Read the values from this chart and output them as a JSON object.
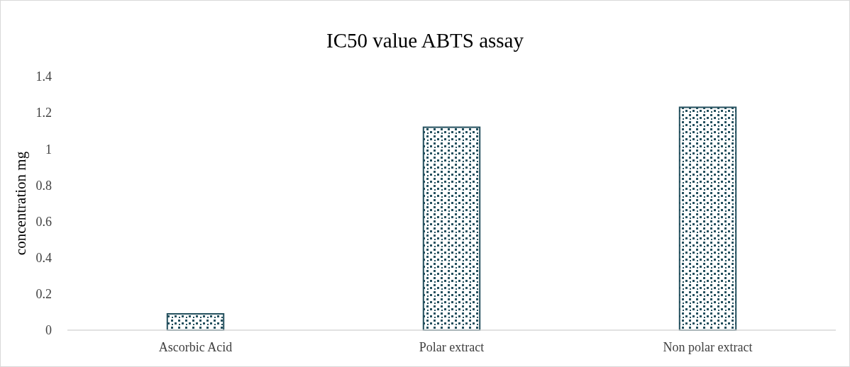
{
  "chart_data": {
    "type": "bar",
    "title": "IC50 value ABTS assay",
    "ylabel": "concentration mg",
    "categories": [
      "Ascorbic Acid",
      "Polar extract",
      "Non polar extract"
    ],
    "values": [
      0.09,
      1.12,
      1.23
    ],
    "color": "#24505e",
    "ylim": [
      0,
      1.4
    ],
    "yticks": [
      0,
      0.2,
      0.4,
      0.6,
      0.8,
      1,
      1.2,
      1.4
    ],
    "grid": false
  }
}
